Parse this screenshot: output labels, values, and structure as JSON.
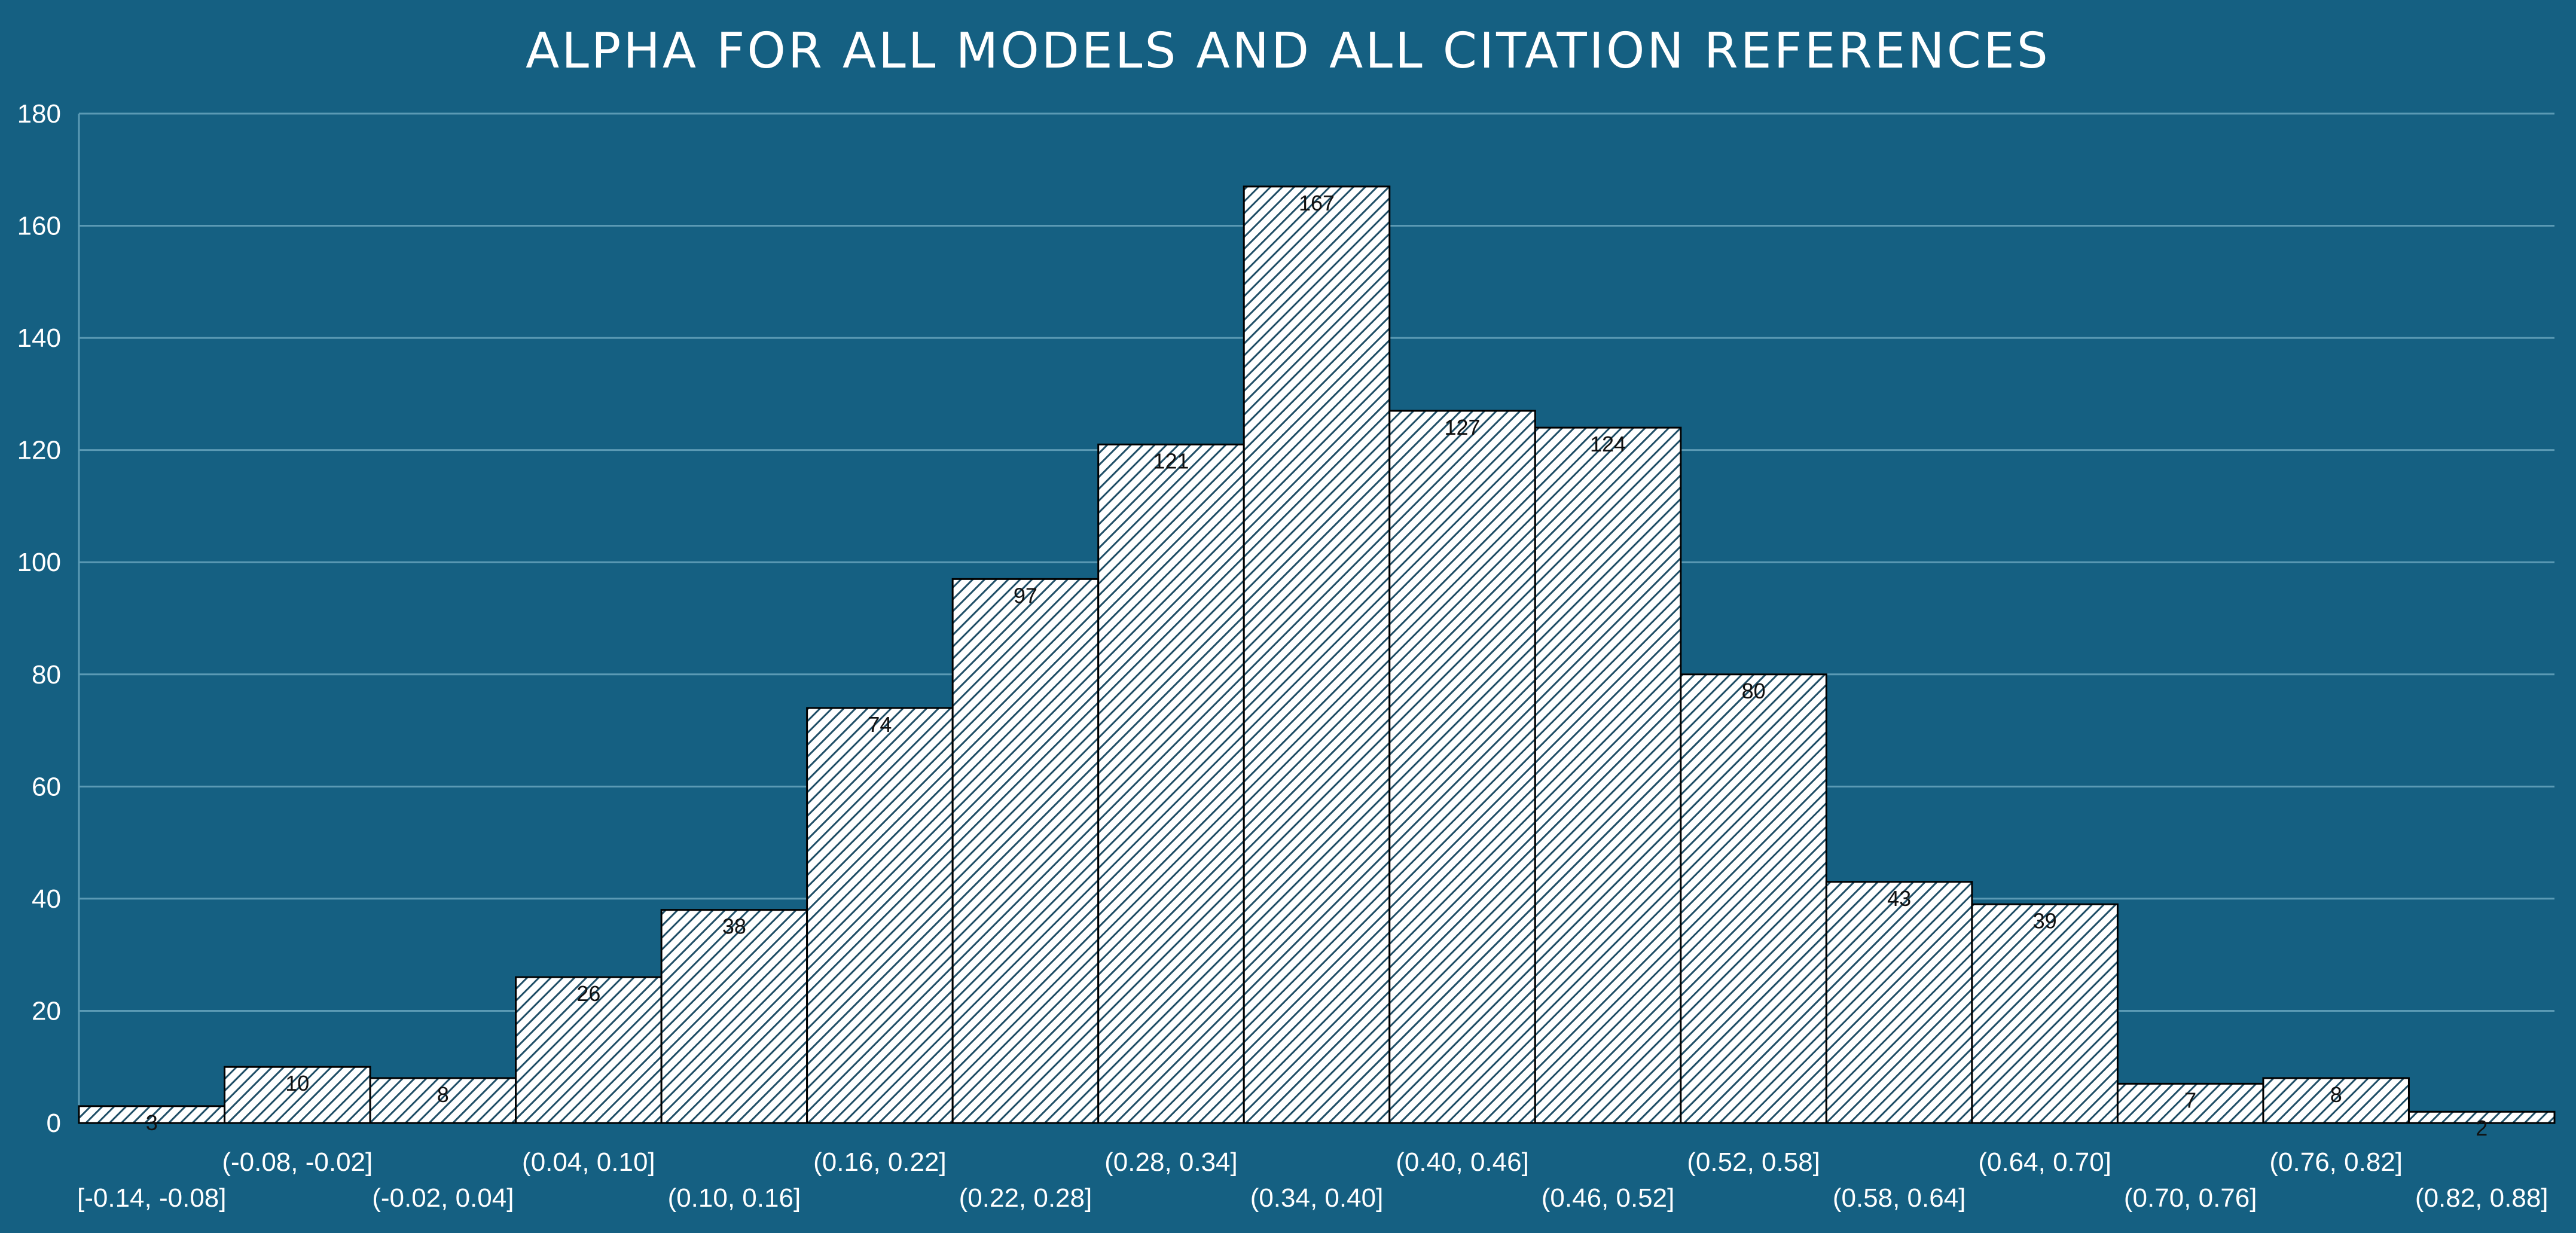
{
  "chart_data": {
    "type": "bar",
    "title": "ALPHA FOR ALL MODELS AND ALL CITATION REFERENCES",
    "xlabel": "",
    "ylabel": "",
    "ylim": [
      0,
      180
    ],
    "yticks": [
      0,
      20,
      40,
      60,
      80,
      100,
      120,
      140,
      160,
      180
    ],
    "grid": true,
    "legend": "none",
    "categories": [
      "[-0.14, -0.08]",
      "(-0.08, -0.02]",
      "(-0.02, 0.04]",
      "(0.04, 0.10]",
      "(0.10, 0.16]",
      "(0.16, 0.22]",
      "(0.22, 0.28]",
      "(0.28, 0.34]",
      "(0.34, 0.40]",
      "(0.40, 0.46]",
      "(0.46, 0.52]",
      "(0.52, 0.58]",
      "(0.58, 0.64]",
      "(0.64, 0.70]",
      "(0.70, 0.76]",
      "(0.76, 0.82]",
      "(0.82, 0.88]"
    ],
    "values": [
      3,
      10,
      8,
      26,
      38,
      74,
      97,
      121,
      167,
      127,
      124,
      80,
      43,
      39,
      7,
      8,
      2
    ]
  },
  "colors": {
    "background": "#156082",
    "gridline": "#5b9ab4",
    "bar_fill": "#ffffff",
    "bar_hatch": "#1f4e66",
    "bar_edge": "#000000",
    "text_light": "#ffffff",
    "text_dark": "#111111"
  }
}
